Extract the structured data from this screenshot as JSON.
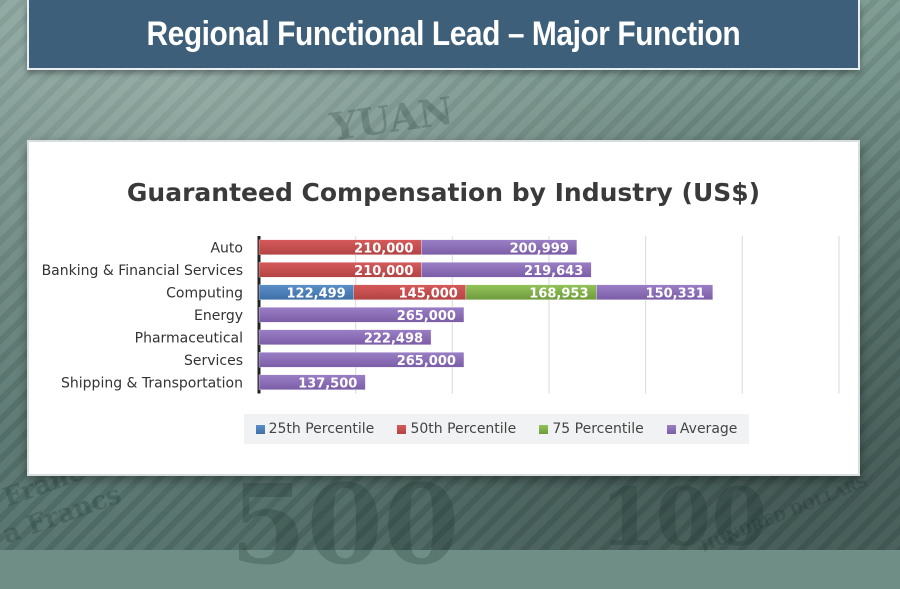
{
  "page": {
    "title": "Regional Functional Lead – Major Function"
  },
  "background_text": [
    "YUAN",
    "Franc",
    "a Francs",
    "HUNDRED DOLLARS",
    "100",
    "500"
  ],
  "colors": {
    "banner": "#3d5f7a",
    "p25": "#5b8fc9",
    "p50": "#d65b5b",
    "p75": "#93c35a",
    "avg": "#9b7fc6"
  },
  "chart_data": {
    "type": "bar",
    "orientation": "horizontal",
    "stacked": true,
    "title": "Guaranteed Compensation by Industry (US$)",
    "categories": [
      "Auto",
      "Banking & Financial Services",
      "Computing",
      "Energy",
      "Pharmaceutical",
      "Services",
      "Shipping & Transportation"
    ],
    "series": [
      {
        "name": "25th Percentile",
        "values": [
          null,
          null,
          122499,
          null,
          null,
          null,
          null
        ]
      },
      {
        "name": "50th Percentile",
        "values": [
          210000,
          210000,
          145000,
          null,
          null,
          null,
          null
        ]
      },
      {
        "name": "75 Percentile",
        "values": [
          null,
          null,
          168953,
          null,
          null,
          null,
          null
        ]
      },
      {
        "name": "Average",
        "values": [
          200999,
          219643,
          150331,
          265000,
          222498,
          265000,
          137500
        ]
      }
    ],
    "data_labels": [
      [
        "210,000",
        "200,999"
      ],
      [
        "210,000",
        "219,643"
      ],
      [
        "122,499",
        "145,000",
        "168,953",
        "150,331"
      ],
      [
        "265,000"
      ],
      [
        "222,498"
      ],
      [
        "265,000"
      ],
      [
        "137,500"
      ]
    ],
    "xlim": [
      0,
      750000
    ],
    "grid": true,
    "legend_position": "bottom"
  }
}
